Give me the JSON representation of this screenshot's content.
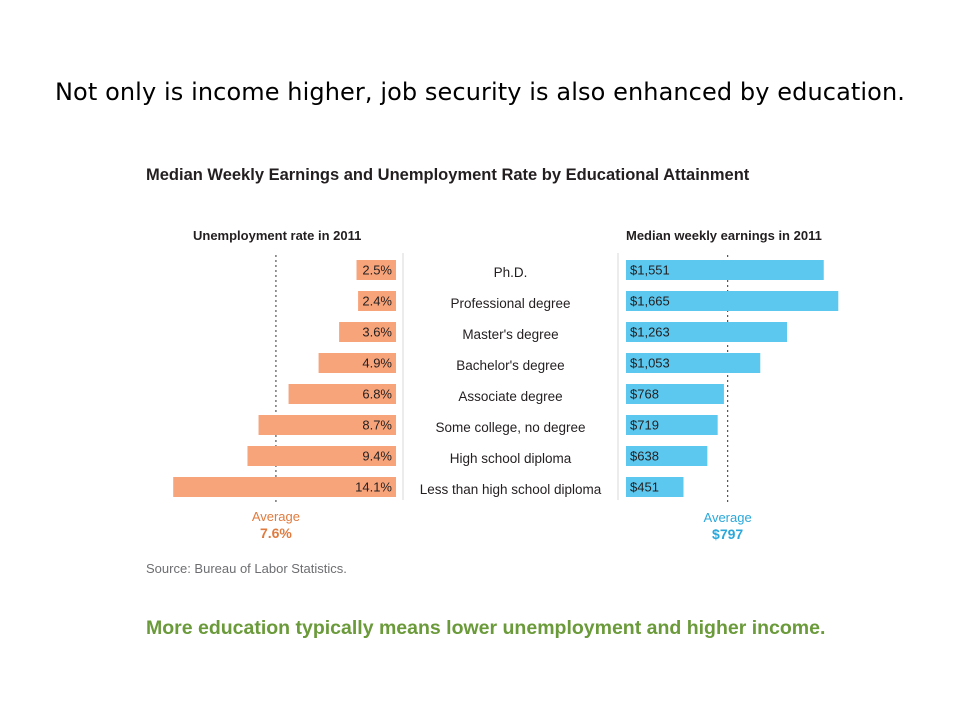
{
  "slide": {
    "heading": "Not only is income higher, job security is also enhanced by education."
  },
  "chart_data": {
    "type": "bar",
    "title": "Median Weekly Earnings and Unemployment Rate by Educational Attainment",
    "categories": [
      "Ph.D.",
      "Professional degree",
      "Master's degree",
      "Bachelor's degree",
      "Associate degree",
      "Some college, no degree",
      "High school diploma",
      "Less than high school diploma"
    ],
    "panels": [
      {
        "title": "Unemployment rate in 2011",
        "direction": "left",
        "color": "#f7a47b",
        "values": [
          2.5,
          2.4,
          3.6,
          4.9,
          6.8,
          8.7,
          9.4,
          14.1
        ],
        "labels": [
          "2.5%",
          "2.4%",
          "3.6%",
          "4.9%",
          "6.8%",
          "8.7%",
          "9.4%",
          "14.1%"
        ],
        "average_label": "Average",
        "average_value_label": "7.6%",
        "average": 7.6,
        "accent": "#e07b3f"
      },
      {
        "title": "Median weekly earnings in 2011",
        "direction": "right",
        "color": "#5cc8ef",
        "values": [
          1551,
          1665,
          1263,
          1053,
          768,
          719,
          638,
          451
        ],
        "labels": [
          "$1,551",
          "$1,665",
          "$1,263",
          "$1,053",
          "$768",
          "$719",
          "$638",
          "$451"
        ],
        "average_label": "Average",
        "average_value_label": "$797",
        "average": 797,
        "accent": "#2aa8db"
      }
    ],
    "source": "Source: Bureau of Labor Statistics.",
    "takeaway": "More education typically means lower unemployment and higher income."
  }
}
